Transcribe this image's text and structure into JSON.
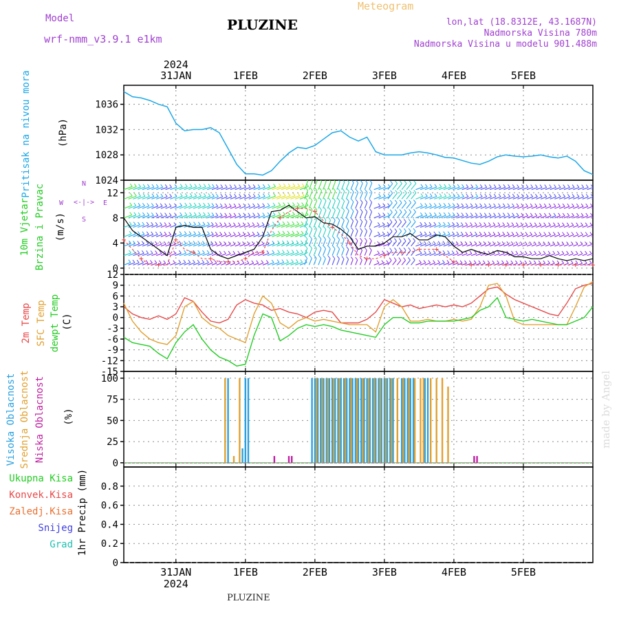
{
  "header": {
    "model_label": "Model",
    "model_name": "wrf-nmm_v3.9.1 e1km",
    "title": "PLUZINE",
    "meteogram": "Meteogram",
    "lonlat": "lon,lat (18.8312E, 43.1687N)",
    "altitude": "Nadmorska Visina 780m",
    "model_altitude": "Nadmorska Visina u modelu 901.488m",
    "watermark": "made by Angel",
    "footer": "PLUZINE"
  },
  "time_axis": {
    "year": "2024",
    "day_labels": [
      "31JAN",
      "1FEB",
      "2FEB",
      "3FEB",
      "4FEB",
      "5FEB"
    ]
  },
  "wind_direction_legend": [
    "N",
    "S",
    "W",
    "E",
    "<",
    "-",
    "|",
    "-",
    ">"
  ],
  "colors": {
    "pressure": "#1aa7e8",
    "t2m": "#e84848",
    "sfc": "#e0a030",
    "dewpt": "#22cc22",
    "purple_text": "#a040d0",
    "high_cloud": "#2aa0e0",
    "mid_cloud": "#e0a030",
    "low_cloud": "#c020a0",
    "grid": "#888888"
  },
  "chart_data": [
    {
      "type": "line",
      "panel": "pressure",
      "ylabel_lines": [
        "Pritisak na nivou mora",
        "(hPa)"
      ],
      "ylim": [
        1024,
        1039
      ],
      "yticks": [
        1024,
        1028,
        1032,
        1036
      ],
      "x_hours": [
        0,
        3,
        6,
        9,
        12,
        15,
        18,
        21,
        24,
        27,
        30,
        33,
        36,
        39,
        42,
        45,
        48,
        51,
        54,
        57,
        60,
        63,
        66,
        69,
        72,
        75,
        78,
        81,
        84,
        87,
        90,
        96,
        99,
        102,
        105,
        108,
        111,
        114,
        120,
        123,
        126,
        129,
        132,
        135,
        138,
        141,
        144,
        147,
        150,
        153,
        156,
        159,
        162
      ],
      "series": [
        {
          "values": [
            1038,
            1037.2,
            1037,
            1036.6,
            1036,
            1035.6,
            1033,
            1031.8,
            1032,
            1032,
            1032.3,
            1031.5,
            1029,
            1026.5,
            1025,
            1025,
            1024.8,
            1025.5,
            1027,
            1028.3,
            1029.2,
            1029,
            1029.5,
            1030.5,
            1031.5,
            1031.8,
            1030.8,
            1030.2,
            1030.8,
            1028.5,
            1028,
            1028,
            1028.3,
            1028.5,
            1028.3,
            1028,
            1027.6,
            1027.5,
            1026.7,
            1026.5,
            1027,
            1027.7,
            1028,
            1027.8,
            1027.7,
            1027.8,
            1028,
            1027.7,
            1027.5,
            1027.8,
            1027,
            1025.5,
            1024.9
          ]
        }
      ]
    },
    {
      "type": "line",
      "panel": "wind",
      "ylabel_lines": [
        "10m Vjetar",
        "Brzina i Pravac",
        "(m/s)"
      ],
      "ylim": [
        -1,
        14
      ],
      "yticks": [
        0,
        4,
        8,
        12
      ],
      "x_hours": [
        0,
        3,
        6,
        9,
        12,
        15,
        18,
        21,
        24,
        27,
        30,
        33,
        36,
        39,
        42,
        45,
        48,
        51,
        54,
        57,
        60,
        63,
        66,
        69,
        72,
        75,
        78,
        81,
        84,
        87,
        90,
        93,
        96,
        99,
        102,
        105,
        108,
        111,
        114,
        117,
        120,
        123,
        126,
        129,
        132,
        135,
        138,
        141,
        144,
        147,
        150,
        153,
        156,
        159,
        162
      ],
      "series": [
        {
          "values": [
            8,
            6,
            5,
            4,
            3,
            2,
            6.5,
            6.8,
            6.5,
            6.5,
            3,
            2,
            1.5,
            2,
            2.5,
            3,
            5,
            9,
            9.2,
            10,
            9,
            8,
            8.2,
            7.2,
            7,
            6.2,
            5,
            3,
            3.5,
            3.5,
            4,
            5,
            5,
            5.5,
            4.5,
            4.5,
            5.3,
            5,
            3.5,
            2.5,
            3,
            2.5,
            2.2,
            2.8,
            2.5,
            1.8,
            1.8,
            1.5,
            1.5,
            2,
            1.5,
            1.2,
            1.5,
            1.2,
            1.5
          ]
        },
        {
          "values": [
            4.5,
            3,
            1.5,
            0.5,
            0.5,
            0.5,
            4.5,
            3,
            2.5,
            1.5,
            1.5,
            1,
            1,
            1,
            1.5,
            2.5,
            2.5,
            6,
            8,
            9,
            9.5,
            9.5,
            9,
            7.5,
            6.5,
            5.5,
            4,
            2,
            1.5,
            1.5,
            2,
            2.5,
            2.5,
            2.5,
            3,
            3,
            3,
            2,
            1,
            0.5,
            0.5,
            0.5,
            0.5,
            0.5,
            0.5,
            0.5,
            0.5,
            0.5,
            0.5,
            0.5,
            0.5,
            0.5,
            0.5,
            0.5,
            0.5
          ]
        }
      ]
    },
    {
      "type": "line",
      "panel": "temperature",
      "ylabel_lines": [
        "2m Temp",
        "SFC Temp",
        "dewpt Temp",
        "(C)"
      ],
      "ylim": [
        -15,
        12
      ],
      "yticks": [
        -15,
        -12,
        -9,
        -6,
        -3,
        0,
        3,
        6,
        9,
        12
      ],
      "x_hours": [
        0,
        3,
        6,
        9,
        12,
        15,
        18,
        21,
        24,
        27,
        30,
        33,
        36,
        39,
        42,
        45,
        48,
        51,
        54,
        57,
        60,
        63,
        66,
        69,
        72,
        75,
        78,
        81,
        84,
        87,
        90,
        93,
        96,
        99,
        102,
        105,
        108,
        111,
        114,
        117,
        120,
        123,
        126,
        129,
        132,
        135,
        138,
        141,
        144,
        147,
        150,
        153,
        156,
        159,
        162
      ],
      "series": [
        {
          "name": "2m Temp",
          "values": [
            3,
            1,
            0,
            -0.5,
            0.5,
            -0.5,
            1,
            5.5,
            4.5,
            1.5,
            -1,
            -1.5,
            -0.5,
            3.5,
            5,
            4,
            3.5,
            2,
            2.5,
            1.5,
            1,
            0,
            1.5,
            2,
            1.5,
            -1.5,
            -1.5,
            -1.5,
            -0.5,
            1.5,
            5,
            4,
            3,
            3.5,
            2.5,
            3,
            3.5,
            3,
            3.5,
            3,
            4,
            6,
            8,
            8.5,
            6.5,
            5,
            4,
            3,
            2,
            1,
            0.5,
            4,
            8,
            9,
            9.5
          ]
        },
        {
          "name": "SFC Temp",
          "values": [
            4,
            -1,
            -4,
            -6,
            -7,
            -7.5,
            -5,
            3,
            4.5,
            0,
            -2,
            -3,
            -5,
            -6,
            -7,
            1,
            6,
            4,
            -1.5,
            -3,
            -1,
            0,
            -1,
            -0.5,
            -1,
            -1.5,
            -2,
            -2,
            -2,
            -4,
            3,
            5,
            3,
            -1,
            -1,
            -0.5,
            -1,
            -1,
            -0.5,
            -1,
            -0.5,
            3,
            9,
            9.5,
            6,
            -1,
            -2,
            -2,
            -2,
            -2,
            -2,
            -2,
            3,
            8.5,
            10
          ]
        },
        {
          "name": "dewpt Temp",
          "values": [
            -5.5,
            -7,
            -7.5,
            -8,
            -10,
            -11.5,
            -7,
            -4,
            -2,
            -6,
            -9,
            -11,
            -12,
            -13.5,
            -13,
            -5,
            1,
            0,
            -6.5,
            -5,
            -3,
            -2,
            -2.5,
            -2,
            -2.5,
            -3.5,
            -4,
            -4.5,
            -5,
            -5.5,
            -2,
            0,
            0,
            -1.5,
            -1.5,
            -1,
            -1,
            -1,
            -1,
            -0.5,
            0,
            2,
            3,
            5.5,
            0,
            -0.5,
            -1,
            -0.5,
            -1,
            -1.5,
            -2,
            -2,
            -1,
            0,
            3
          ]
        }
      ]
    },
    {
      "type": "bar",
      "panel": "cloud_cover",
      "ylabel_lines": [
        "Visoka Oblacnost",
        "Srednja Oblacnost",
        "Niska Oblacnost",
        "(%)"
      ],
      "ylim": [
        -5,
        108
      ],
      "yticks": [
        0,
        25,
        50,
        75,
        100
      ],
      "series": [
        {
          "name": "Visoka Oblacnost",
          "x_hours": [
            36,
            41,
            42,
            43,
            65,
            66,
            67,
            68,
            69,
            70,
            71,
            72,
            73,
            74,
            75,
            76,
            77,
            78,
            79,
            80,
            81,
            82,
            83,
            84,
            85,
            86,
            87,
            88,
            89,
            90,
            91,
            92,
            93,
            96,
            97,
            98,
            99,
            100,
            104,
            105
          ],
          "values": [
            100,
            17,
            100,
            100,
            100,
            100,
            100,
            100,
            100,
            100,
            100,
            100,
            100,
            100,
            100,
            100,
            100,
            100,
            100,
            100,
            100,
            100,
            100,
            100,
            100,
            100,
            100,
            100,
            100,
            100,
            100,
            100,
            100,
            100,
            100,
            100,
            100,
            100,
            100,
            100
          ]
        },
        {
          "name": "Srednja Oblacnost",
          "x_hours": [
            35,
            38,
            40,
            66.5,
            68.5,
            70.5,
            72.5,
            74.5,
            76.5,
            78.5,
            80.5,
            82.5,
            84.5,
            86.5,
            88.5,
            90.5,
            92.5,
            94.5,
            96.5,
            98.5,
            100.5,
            102.5,
            103.5,
            106,
            108,
            110,
            112
          ],
          "values": [
            100,
            8,
            100,
            100,
            100,
            100,
            100,
            100,
            100,
            100,
            100,
            100,
            100,
            100,
            100,
            100,
            100,
            100,
            100,
            100,
            100,
            100,
            100,
            100,
            100,
            100,
            90
          ]
        },
        {
          "name": "Niska Oblacnost",
          "x_hours": [
            52,
            57,
            58,
            121,
            122
          ],
          "values": [
            8,
            8,
            8,
            8,
            8
          ]
        }
      ]
    },
    {
      "type": "line",
      "panel": "precipitation",
      "ylabel_lines": [
        "1hr Precip (mm)"
      ],
      "legend": [
        "Ukupna Kisa",
        "Konvek.Kisa",
        "Zaledj.Kisa",
        "Snijeg",
        "Grad"
      ],
      "legend_colors": [
        "#22cc22",
        "#e84848",
        "#e87030",
        "#4040e0",
        "#20c0b0"
      ],
      "ylim": [
        0,
        1.0
      ],
      "yticks": [
        0,
        0.2,
        0.4,
        0.6,
        0.8
      ],
      "x_hours": [
        0,
        162
      ],
      "series": [
        {
          "name": "Ukupna Kisa",
          "values": [
            0,
            0
          ]
        }
      ]
    }
  ]
}
